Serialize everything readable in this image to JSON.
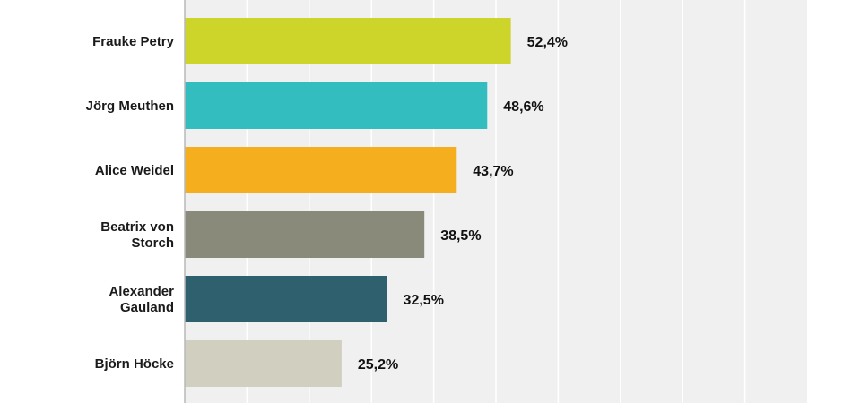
{
  "chart_data": {
    "type": "bar",
    "orientation": "horizontal",
    "title": "",
    "xlabel": "",
    "ylabel": "",
    "categories": [
      [
        "Frauke Petry"
      ],
      [
        "Jörg Meuthen"
      ],
      [
        "Alice Weidel"
      ],
      [
        "Beatrix von",
        "Storch"
      ],
      [
        "Alexander",
        "Gauland"
      ],
      [
        "Björn Höcke"
      ]
    ],
    "values": [
      52.4,
      48.6,
      43.7,
      38.5,
      32.5,
      25.2
    ],
    "value_labels": [
      "52,4%",
      "48,6%",
      "43,7%",
      "38,5%",
      "32,5%",
      "25,2%"
    ],
    "colors": [
      "#cdd52a",
      "#33bdbe",
      "#f5ae1e",
      "#8a8a7a",
      "#2e606e",
      "#d0cfc0"
    ],
    "xlim": [
      0,
      100
    ],
    "grid": true,
    "legend": "none",
    "background": "#f0f0f0",
    "gridline_color": "#ffffff"
  }
}
